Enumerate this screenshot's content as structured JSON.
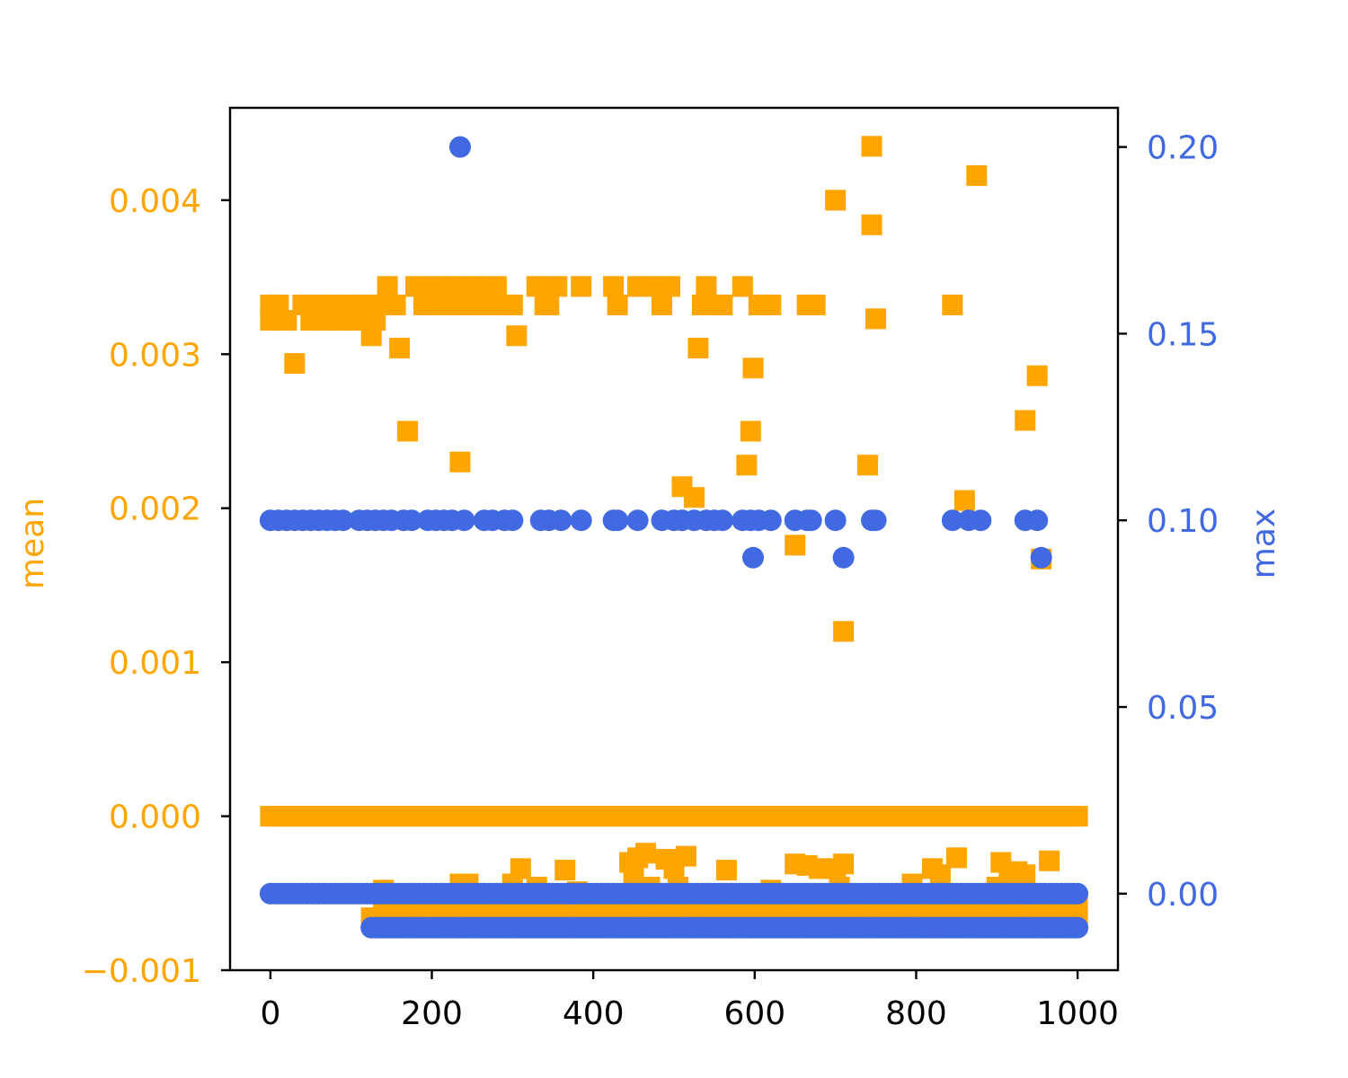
{
  "chart_data": {
    "type": "scatter",
    "title": "",
    "xlabel": "",
    "y_left_label": "mean",
    "y_right_label": "max",
    "xlim": [
      -50,
      1050
    ],
    "y_left_lim": [
      -0.001,
      0.0046
    ],
    "y_right_lim": [
      -0.0205,
      0.2105
    ],
    "x_ticks": [
      {
        "value": 0,
        "label": "0"
      },
      {
        "value": 200,
        "label": "200"
      },
      {
        "value": 400,
        "label": "400"
      },
      {
        "value": 600,
        "label": "600"
      },
      {
        "value": 800,
        "label": "800"
      },
      {
        "value": 1000,
        "label": "1000"
      }
    ],
    "y_left_ticks": [
      {
        "value": -0.001,
        "label": "−0.001"
      },
      {
        "value": 0.0,
        "label": "0.000"
      },
      {
        "value": 0.001,
        "label": "0.001"
      },
      {
        "value": 0.002,
        "label": "0.002"
      },
      {
        "value": 0.003,
        "label": "0.003"
      },
      {
        "value": 0.004,
        "label": "0.004"
      }
    ],
    "y_right_ticks": [
      {
        "value": 0.0,
        "label": "0.00"
      },
      {
        "value": 0.05,
        "label": "0.05"
      },
      {
        "value": 0.1,
        "label": "0.10"
      },
      {
        "value": 0.15,
        "label": "0.15"
      },
      {
        "value": 0.2,
        "label": "0.20"
      }
    ],
    "colors": {
      "mean": "#FFA500",
      "max": "#4169E1",
      "axis": "#000000"
    },
    "series": [
      {
        "name": "mean",
        "axis": "left",
        "marker": "square",
        "color": "#FFA500",
        "baseline_rows": [
          {
            "y": 0.0,
            "x_start": 0,
            "x_end": 1000
          },
          {
            "y": -0.00066,
            "x_start": 125,
            "x_end": 1000
          },
          {
            "y": -0.00058,
            "x_start": 140,
            "x_end": 1000
          }
        ],
        "points": [
          [
            0,
            0.00332
          ],
          [
            0,
            0.00322
          ],
          [
            10,
            0.00332
          ],
          [
            20,
            0.00322
          ],
          [
            30,
            0.00294
          ],
          [
            40,
            0.00332
          ],
          [
            50,
            0.00322
          ],
          [
            60,
            0.00332
          ],
          [
            70,
            0.00322
          ],
          [
            80,
            0.00332
          ],
          [
            90,
            0.00322
          ],
          [
            100,
            0.00332
          ],
          [
            110,
            0.00322
          ],
          [
            120,
            0.00332
          ],
          [
            125,
            0.00312
          ],
          [
            130,
            0.00322
          ],
          [
            140,
            0.00332
          ],
          [
            145,
            0.00344
          ],
          [
            155,
            0.00332
          ],
          [
            160,
            0.00304
          ],
          [
            170,
            0.0025
          ],
          [
            180,
            0.00344
          ],
          [
            190,
            0.00332
          ],
          [
            200,
            0.00344
          ],
          [
            210,
            0.00332
          ],
          [
            220,
            0.00344
          ],
          [
            230,
            0.00332
          ],
          [
            235,
            0.0023
          ],
          [
            240,
            0.00344
          ],
          [
            250,
            0.00332
          ],
          [
            260,
            0.00344
          ],
          [
            270,
            0.00332
          ],
          [
            280,
            0.00344
          ],
          [
            290,
            0.00332
          ],
          [
            300,
            0.00332
          ],
          [
            305,
            0.00312
          ],
          [
            330,
            0.00344
          ],
          [
            340,
            0.00332
          ],
          [
            345,
            0.00332
          ],
          [
            355,
            0.00344
          ],
          [
            385,
            0.00344
          ],
          [
            425,
            0.00344
          ],
          [
            430,
            0.00332
          ],
          [
            455,
            0.00344
          ],
          [
            480,
            0.00344
          ],
          [
            485,
            0.00332
          ],
          [
            495,
            0.00344
          ],
          [
            510,
            0.00214
          ],
          [
            525,
            0.00207
          ],
          [
            530,
            0.00304
          ],
          [
            535,
            0.00332
          ],
          [
            540,
            0.00344
          ],
          [
            555,
            0.00332
          ],
          [
            560,
            0.00332
          ],
          [
            585,
            0.00344
          ],
          [
            590,
            0.00228
          ],
          [
            595,
            0.0025
          ],
          [
            598,
            0.00291
          ],
          [
            605,
            0.00332
          ],
          [
            620,
            0.00332
          ],
          [
            650,
            0.00176
          ],
          [
            665,
            0.00332
          ],
          [
            675,
            0.00332
          ],
          [
            700,
            0.004
          ],
          [
            710,
            0.0012
          ],
          [
            740,
            0.00228
          ],
          [
            745,
            0.00435
          ],
          [
            745,
            0.00384
          ],
          [
            750,
            0.00323
          ],
          [
            845,
            0.00332
          ],
          [
            860,
            0.00205
          ],
          [
            875,
            0.00416
          ],
          [
            935,
            0.00257
          ],
          [
            950,
            0.00286
          ],
          [
            955,
            0.00167
          ],
          [
            140,
            -0.00048
          ],
          [
            235,
            -0.00044
          ],
          [
            245,
            -0.00044
          ],
          [
            300,
            -0.00044
          ],
          [
            310,
            -0.00034
          ],
          [
            330,
            -0.00046
          ],
          [
            365,
            -0.00035
          ],
          [
            380,
            -0.00049
          ],
          [
            445,
            -0.0003
          ],
          [
            450,
            -0.00038
          ],
          [
            455,
            -0.00027
          ],
          [
            465,
            -0.00024
          ],
          [
            470,
            -0.00046
          ],
          [
            490,
            -0.00028
          ],
          [
            500,
            -0.00034
          ],
          [
            505,
            -0.00046
          ],
          [
            515,
            -0.00026
          ],
          [
            565,
            -0.00035
          ],
          [
            620,
            -0.00048
          ],
          [
            650,
            -0.00031
          ],
          [
            665,
            -0.00032
          ],
          [
            680,
            -0.00034
          ],
          [
            700,
            -0.00034
          ],
          [
            705,
            -0.00046
          ],
          [
            710,
            -0.00031
          ],
          [
            795,
            -0.00044
          ],
          [
            820,
            -0.00034
          ],
          [
            830,
            -0.00038
          ],
          [
            850,
            -0.00027
          ],
          [
            900,
            -0.00046
          ],
          [
            905,
            -0.0003
          ],
          [
            915,
            -0.0004
          ],
          [
            925,
            -0.00036
          ],
          [
            935,
            -0.00038
          ],
          [
            965,
            -0.00029
          ]
        ]
      },
      {
        "name": "max",
        "axis": "right",
        "marker": "circle",
        "color": "#4169E1",
        "baseline_rows": [
          {
            "y": 0.0,
            "x_start": 0,
            "x_end": 1000
          },
          {
            "y": -0.0091,
            "x_start": 125,
            "x_end": 1000
          }
        ],
        "points": [
          [
            235,
            0.2
          ],
          [
            598,
            0.09
          ],
          [
            710,
            0.09
          ],
          [
            955,
            0.09
          ],
          [
            0,
            0.1
          ],
          [
            10,
            0.1
          ],
          [
            20,
            0.1
          ],
          [
            30,
            0.1
          ],
          [
            40,
            0.1
          ],
          [
            50,
            0.1
          ],
          [
            60,
            0.1
          ],
          [
            70,
            0.1
          ],
          [
            80,
            0.1
          ],
          [
            90,
            0.1
          ],
          [
            110,
            0.1
          ],
          [
            120,
            0.1
          ],
          [
            130,
            0.1
          ],
          [
            140,
            0.1
          ],
          [
            150,
            0.1
          ],
          [
            165,
            0.1
          ],
          [
            175,
            0.1
          ],
          [
            195,
            0.1
          ],
          [
            205,
            0.1
          ],
          [
            215,
            0.1
          ],
          [
            225,
            0.1
          ],
          [
            240,
            0.1
          ],
          [
            265,
            0.1
          ],
          [
            275,
            0.1
          ],
          [
            290,
            0.1
          ],
          [
            300,
            0.1
          ],
          [
            335,
            0.1
          ],
          [
            345,
            0.1
          ],
          [
            360,
            0.1
          ],
          [
            385,
            0.1
          ],
          [
            425,
            0.1
          ],
          [
            430,
            0.1
          ],
          [
            455,
            0.1
          ],
          [
            485,
            0.1
          ],
          [
            500,
            0.1
          ],
          [
            510,
            0.1
          ],
          [
            525,
            0.1
          ],
          [
            540,
            0.1
          ],
          [
            550,
            0.1
          ],
          [
            560,
            0.1
          ],
          [
            585,
            0.1
          ],
          [
            595,
            0.1
          ],
          [
            605,
            0.1
          ],
          [
            620,
            0.1
          ],
          [
            650,
            0.1
          ],
          [
            665,
            0.1
          ],
          [
            670,
            0.1
          ],
          [
            700,
            0.1
          ],
          [
            745,
            0.1
          ],
          [
            750,
            0.1
          ],
          [
            845,
            0.1
          ],
          [
            865,
            0.1
          ],
          [
            880,
            0.1
          ],
          [
            935,
            0.1
          ],
          [
            950,
            0.1
          ]
        ]
      }
    ]
  }
}
